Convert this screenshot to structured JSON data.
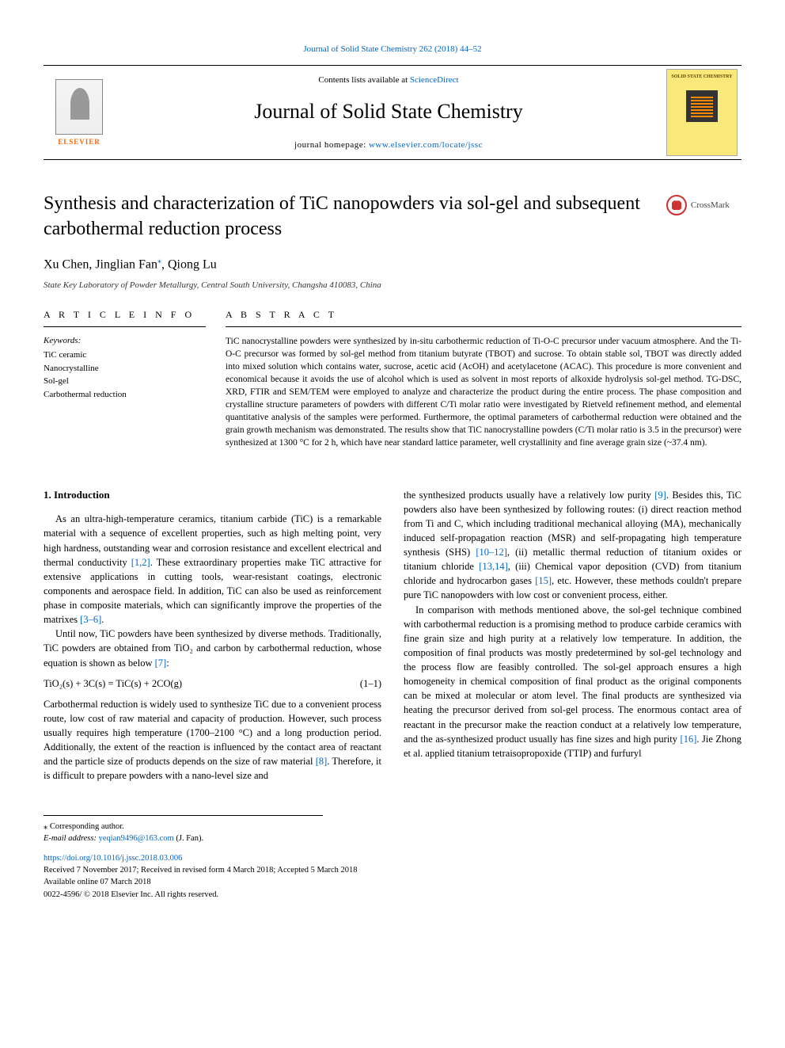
{
  "top_journal_ref": "Journal of Solid State Chemistry 262 (2018) 44–52",
  "header": {
    "contents_prefix": "Contents lists available at ",
    "contents_link": "ScienceDirect",
    "journal_name": "Journal of Solid State Chemistry",
    "homepage_prefix": "journal homepage: ",
    "homepage_url": "www.elsevier.com/locate/jssc",
    "publisher_logo_text": "ELSEVIER",
    "cover_text": "SOLID STATE CHEMISTRY"
  },
  "title": "Synthesis and characterization of TiC nanopowders via sol-gel and subsequent carbothermal reduction process",
  "crossmark_label": "CrossMark",
  "authors": "Xu Chen, Jinglian Fan",
  "author_corr_mark": "⁎",
  "authors_tail": ", Qiong Lu",
  "affiliation": "State Key Laboratory of Powder Metallurgy, Central South University, Changsha 410083, China",
  "article_info_head": "A R T I C L E  I N F O",
  "abstract_head": "A B S T R A C T",
  "keywords_label": "Keywords:",
  "keywords": [
    "TiC ceramic",
    "Nanocrystalline",
    "Sol-gel",
    "Carbothermal reduction"
  ],
  "abstract_text": "TiC nanocrystalline powders were synthesized by in-situ carbothermic reduction of Ti-O-C precursor under vacuum atmosphere. And the Ti-O-C precursor was formed by sol-gel method from titanium butyrate (TBOT) and sucrose. To obtain stable sol, TBOT was directly added into mixed solution which contains water, sucrose, acetic acid (AcOH) and acetylacetone (ACAC). This procedure is more convenient and economical because it avoids the use of alcohol which is used as solvent in most reports of alkoxide hydrolysis sol-gel method. TG-DSC, XRD, FTIR and SEM/TEM were employed to analyze and characterize the product during the entire process. The phase composition and crystalline structure parameters of powders with different C/Ti molar ratio were investigated by Rietveld refinement method, and elemental quantitative analysis of the samples were performed. Furthermore, the optimal parameters of carbothermal reduction were obtained and the grain growth mechanism was demonstrated. The results show that TiC nanocrystalline powders (C/Ti molar ratio is 3.5 in the precursor) were synthesized at 1300 °C for 2 h, which have near standard lattice parameter, well crystallinity and fine average grain size (~37.4 nm).",
  "section1_title": "1. Introduction",
  "col_left": {
    "p1a": "As an ultra-high-temperature ceramics, titanium carbide (TiC) is a remarkable material with a sequence of excellent properties, such as high melting point, very high hardness, outstanding wear and corrosion resistance and excellent electrical and thermal conductivity ",
    "ref1": "[1,2]",
    "p1b": ". These extraordinary properties make TiC attractive for extensive applications in cutting tools, wear-resistant coatings, electronic components and aerospace field. In addition, TiC can also be used as reinforcement phase in composite materials, which can significantly improve the properties of the matrixes ",
    "ref2": "[3–6]",
    "p1c": ".",
    "p2a": "Until now, TiC powders have been synthesized by diverse methods. Traditionally, TiC powders are obtained from TiO₂ and carbon by carbothermal reduction, whose equation is shown as below ",
    "ref3": "[7]",
    "p2b": ":",
    "eq": "TiO₂(s) + 3C(s) = TiC(s) + 2CO(g)",
    "eqnum": "(1–1)",
    "p3a": "Carbothermal reduction is widely used to synthesize TiC due to a convenient process route, low cost of raw material and capacity of production. However, such process usually requires high temperature (1700–2100 °C) and a long production period. Additionally, the extent of the reaction is influenced by the contact area of reactant and the particle size of products depends on the size of raw material ",
    "ref4": "[8]",
    "p3b": ". Therefore, it is difficult to prepare powders with a nano-level size and"
  },
  "col_right": {
    "p1a": "the synthesized products usually have a relatively low purity ",
    "ref5": "[9]",
    "p1b": ". Besides this, TiC powders also have been synthesized by following routes: (i) direct reaction method from Ti and C, which including traditional mechanical alloying (MA), mechanically induced self-propagation reaction (MSR) and self-propagating high temperature synthesis (SHS) ",
    "ref6": "[10–12]",
    "p1c": ", (ii) metallic thermal reduction of titanium oxides or titanium chloride ",
    "ref7": "[13,14]",
    "p1d": ", (iii) Chemical vapor deposition (CVD) from titanium chloride and hydrocarbon gases ",
    "ref8": "[15]",
    "p1e": ", etc. However, these methods couldn't prepare pure TiC nanopowders with low cost or convenient process, either.",
    "p2a": "In comparison with methods mentioned above, the sol-gel technique combined with carbothermal reduction is a promising method to produce carbide ceramics with fine grain size and high purity at a relatively low temperature. In addition, the composition of final products was mostly predetermined by sol-gel technology and the process flow are feasibly controlled. The sol-gel approach ensures a high homogeneity in chemical composition of final product as the original components can be mixed at molecular or atom level. The final products are synthesized via heating the precursor derived from sol-gel process. The enormous contact area of reactant in the precursor make the reaction conduct at a relatively low temperature, and the as-synthesized product usually has fine sizes and high purity ",
    "ref9": "[16]",
    "p2b": ". Jie Zhong et al. applied titanium tetraisopropoxide (TTIP) and furfuryl"
  },
  "footnotes": {
    "corr": "⁎ Corresponding author.",
    "email_label": "E-mail address: ",
    "email": "yeqian9496@163.com",
    "email_tail": " (J. Fan)."
  },
  "meta": {
    "doi": "https://doi.org/10.1016/j.jssc.2018.03.006",
    "dates": "Received 7 November 2017; Received in revised form 4 March 2018; Accepted 5 March 2018",
    "available": "Available online 07 March 2018",
    "copyright": "0022-4596/ © 2018 Elsevier Inc. All rights reserved."
  },
  "colors": {
    "link": "#0066cc",
    "elsevier_orange": "#ff6600",
    "cover_bg": "#f9e87a",
    "crossmark_red": "#c33"
  }
}
